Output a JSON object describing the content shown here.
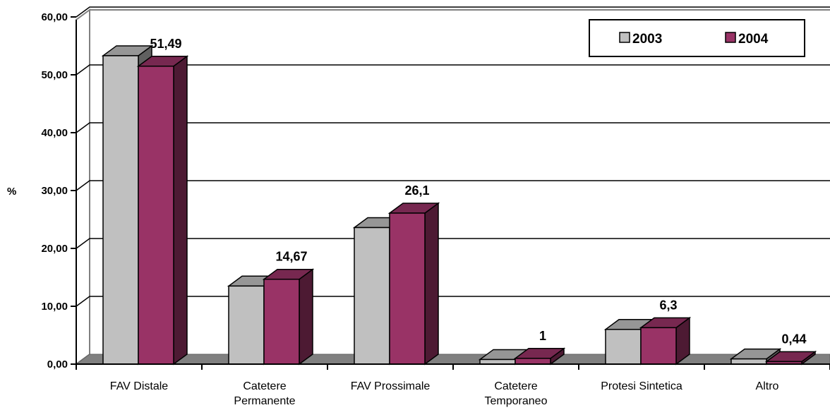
{
  "chart_data": {
    "type": "bar",
    "ylabel": "%",
    "ylim": [
      0,
      60
    ],
    "y_ticks": [
      "0,00",
      "10,00",
      "20,00",
      "30,00",
      "40,00",
      "50,00",
      "60,00"
    ],
    "categories": [
      [
        "FAV Distale"
      ],
      [
        "Catetere",
        "Permanente"
      ],
      [
        "FAV  Prossimale"
      ],
      [
        "Catetere",
        "Temporaneo"
      ],
      [
        "Protesi Sintetica"
      ],
      [
        "Altro"
      ]
    ],
    "series": [
      {
        "name": "2003",
        "color": "#c0c0c0",
        "values": [
          53.3,
          13.5,
          23.6,
          0.8,
          6.0,
          0.9
        ]
      },
      {
        "name": "2004",
        "color": "#993366",
        "values": [
          51.49,
          14.67,
          26.1,
          1,
          6.3,
          0.44
        ]
      }
    ],
    "data_labels": [
      "51,49",
      "14,67",
      "26,1",
      "1",
      "6,3",
      "0,44"
    ],
    "grid": true,
    "legend": "top-right"
  }
}
